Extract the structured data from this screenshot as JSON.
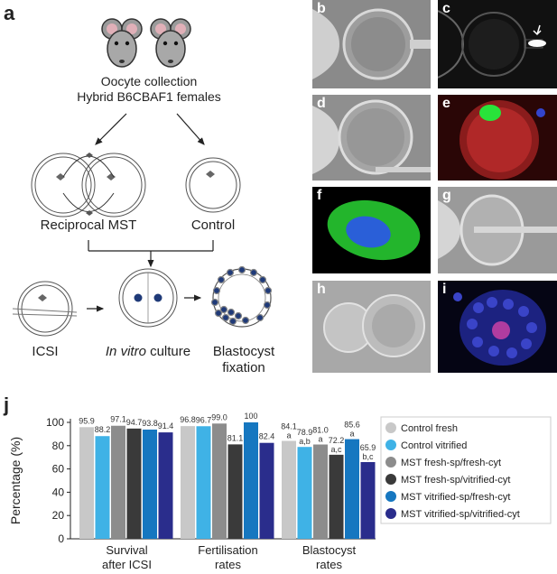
{
  "panel_labels": {
    "a": "a",
    "j": "j"
  },
  "mouse_icons": [
    "mouse-icon",
    "mouse-icon"
  ],
  "oocyte_text": [
    "Oocyte collection",
    "Hybrid B6CBAF1 females"
  ],
  "reciprocal_label": "Reciprocal MST",
  "control_label": "Control",
  "icsi_label": "ICSI",
  "culture_label": {
    "italic": "In vitro",
    "rest": " culture"
  },
  "blastocyst_label": [
    "Blastocyst",
    "fixation"
  ],
  "micrographs": [
    {
      "label": "b",
      "bg": "#8a8a8a"
    },
    {
      "label": "c",
      "bg": "#111111"
    },
    {
      "label": "d",
      "bg": "#8f8f8f"
    },
    {
      "label": "e",
      "bg": "#2a0606"
    },
    {
      "label": "f",
      "bg": "#000000"
    },
    {
      "label": "g",
      "bg": "#9a9a9a"
    },
    {
      "label": "h",
      "bg": "#a8a8a8"
    },
    {
      "label": "i",
      "bg": "#050514"
    }
  ],
  "chart_data": {
    "type": "bar",
    "ylabel": "Percentage (%)",
    "ylim": [
      0,
      100
    ],
    "yticks": [
      0,
      20,
      40,
      60,
      80,
      100
    ],
    "categories": [
      [
        "Survival",
        "after ICSI"
      ],
      [
        "Fertilisation",
        "rates"
      ],
      [
        "Blastocyst",
        "rates"
      ]
    ],
    "legend_position": "right",
    "series": [
      {
        "name": "Control fresh",
        "color": "#c8c8c8",
        "values": [
          95.9,
          96.8,
          84.1
        ],
        "labels": [
          "95.9",
          "96.8",
          "84.1"
        ],
        "sig": [
          "",
          "",
          "a"
        ]
      },
      {
        "name": "Control vitrified",
        "color": "#3fb2e6",
        "values": [
          88.2,
          96.7,
          78.9
        ],
        "labels": [
          "88.2",
          "96.7",
          "78.9"
        ],
        "sig": [
          "",
          "",
          "a,b"
        ]
      },
      {
        "name": "MST fresh-sp/fresh-cyt",
        "color": "#8c8c8c",
        "values": [
          97.1,
          99.0,
          81.0
        ],
        "labels": [
          "97.1",
          "99.0",
          "81.0"
        ],
        "sig": [
          "",
          "",
          "a"
        ]
      },
      {
        "name": "MST fresh-sp/vitrified-cyt",
        "color": "#3a3a3a",
        "values": [
          94.7,
          81.1,
          72.2
        ],
        "labels": [
          "94.7",
          "81.1",
          "72.2"
        ],
        "sig": [
          "",
          "",
          "a,c"
        ]
      },
      {
        "name": "MST vitrified-sp/fresh-cyt",
        "color": "#1677c0",
        "values": [
          93.8,
          100,
          85.6
        ],
        "labels": [
          "93.8",
          "100",
          "85.6"
        ],
        "sig": [
          "",
          "",
          "a"
        ]
      },
      {
        "name": "MST vitrified-sp/vitrified-cyt",
        "color": "#2a2d8c",
        "values": [
          91.4,
          82.4,
          65.9
        ],
        "labels": [
          "91.4",
          "82.4",
          "65.9"
        ],
        "sig": [
          "",
          "",
          "b,c"
        ]
      }
    ]
  }
}
